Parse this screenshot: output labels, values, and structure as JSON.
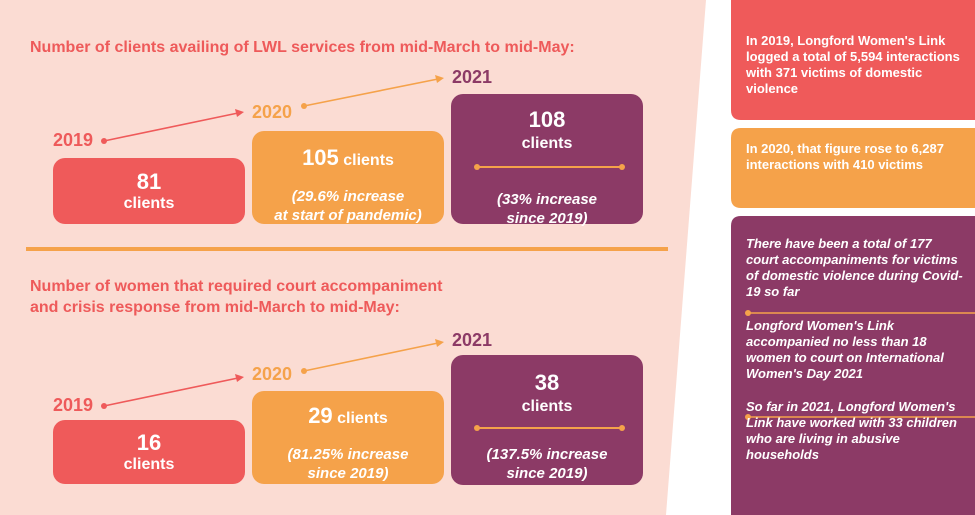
{
  "section1": {
    "title": "Number of clients availing of LWL services from mid-March to mid-May:",
    "year_2019": "2019",
    "year_2020": "2020",
    "year_2021": "2021",
    "box_2019": {
      "number": "81",
      "unit": "clients"
    },
    "box_2020": {
      "number": "105",
      "unit": "clients",
      "note_line1": "(29.6% increase",
      "note_line2": "at start of pandemic)"
    },
    "box_2021": {
      "number": "108",
      "unit": "clients",
      "note_line1": "(33% increase",
      "note_line2": "since 2019)"
    }
  },
  "section2": {
    "title_line1": "Number of women that required court accompaniment",
    "title_line2": "and crisis response from mid-March to mid-May:",
    "year_2019": "2019",
    "year_2020": "2020",
    "year_2021": "2021",
    "box_2019": {
      "number": "16",
      "unit": "clients"
    },
    "box_2020": {
      "number": "29",
      "unit": "clients",
      "note_line1": "(81.25% increase",
      "note_line2": "since 2019)"
    },
    "box_2021": {
      "number": "38",
      "unit": "clients",
      "note_line1": "(137.5% increase",
      "note_line2": "since 2019)"
    }
  },
  "sidebar": {
    "card1": "In 2019, Longford Women's Link logged a total of 5,594 interactions with 371 victims of domestic violence",
    "card2": "In 2020, that figure rose to 6,287 interactions with 410 victims",
    "card3_p1": "There have been a total of 177 court accompaniments for victims of domestic violence during Covid-19 so far",
    "card3_p2": "Longford Women's Link accompanied no less than 18 women to court on International Women's Day 2021",
    "card3_p3": "So far in 2021, Longford Women's Link have worked with 33 children who are living in abusive households"
  },
  "colors": {
    "red": "#ef5a5a",
    "orange": "#f5a24a",
    "purple": "#8c3a66",
    "background": "#fbdcd3"
  }
}
